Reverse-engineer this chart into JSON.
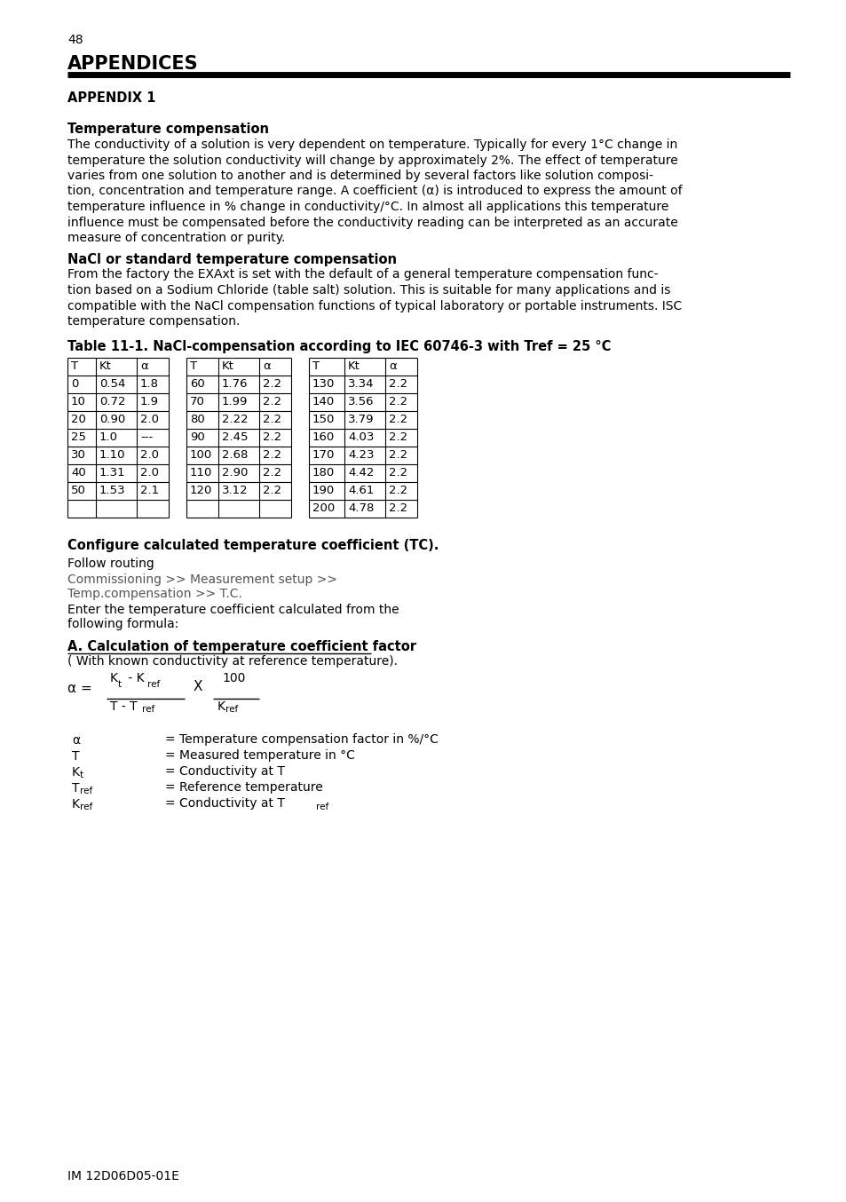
{
  "page_number": "48",
  "title": "APPENDICES",
  "appendix_label": "APPENDIX 1",
  "section1_heading": "Temperature compensation",
  "section1_body_lines": [
    "The conductivity of a solution is very dependent on temperature. Typically for every 1°C change in",
    "temperature the solution conductivity will change by approximately 2%. The effect of temperature",
    "varies from one solution to another and is determined by several factors like solution composi-",
    "tion, concentration and temperature range. A coefficient (α) is introduced to express the amount of",
    "temperature influence in % change in conductivity/°C. In almost all applications this temperature",
    "influence must be compensated before the conductivity reading can be interpreted as an accurate",
    "measure of concentration or purity."
  ],
  "section2_heading": "NaCl or standard temperature compensation",
  "section2_body_lines": [
    "From the factory the EXAxt is set with the default of a general temperature compensation func-",
    "tion based on a Sodium Chloride (table salt) solution. This is suitable for many applications and is",
    "compatible with the NaCl compensation functions of typical laboratory or portable instruments. ISC",
    "temperature compensation."
  ],
  "table_title": "Table 11-1. NaCl-compensation according to IEC 60746-3 with Tref = 25 °C",
  "table_col1": [
    [
      "T",
      "Kt",
      "α"
    ],
    [
      "0",
      "0.54",
      "1.8"
    ],
    [
      "10",
      "0.72",
      "1.9"
    ],
    [
      "20",
      "0.90",
      "2.0"
    ],
    [
      "25",
      "1.0",
      "---"
    ],
    [
      "30",
      "1.10",
      "2.0"
    ],
    [
      "40",
      "1.31",
      "2.0"
    ],
    [
      "50",
      "1.53",
      "2.1"
    ],
    [
      "",
      "",
      ""
    ]
  ],
  "table_col2": [
    [
      "T",
      "Kt",
      "α"
    ],
    [
      "60",
      "1.76",
      "2.2"
    ],
    [
      "70",
      "1.99",
      "2.2"
    ],
    [
      "80",
      "2.22",
      "2.2"
    ],
    [
      "90",
      "2.45",
      "2.2"
    ],
    [
      "100",
      "2.68",
      "2.2"
    ],
    [
      "110",
      "2.90",
      "2.2"
    ],
    [
      "120",
      "3.12",
      "2.2"
    ],
    [
      "",
      "",
      ""
    ]
  ],
  "table_col3": [
    [
      "T",
      "Kt",
      "α"
    ],
    [
      "130",
      "3.34",
      "2.2"
    ],
    [
      "140",
      "3.56",
      "2.2"
    ],
    [
      "150",
      "3.79",
      "2.2"
    ],
    [
      "160",
      "4.03",
      "2.2"
    ],
    [
      "170",
      "4.23",
      "2.2"
    ],
    [
      "180",
      "4.42",
      "2.2"
    ],
    [
      "190",
      "4.61",
      "2.2"
    ],
    [
      "200",
      "4.78",
      "2.2"
    ]
  ],
  "section3_heading": "Configure calculated temperature coefficient (TC).",
  "follow_routing": "Follow routing",
  "routing_line1": "Commissioning >> Measurement setup >>",
  "routing_line2": "Temp.compensation >> T.C.",
  "routing_body_lines": [
    "Enter the temperature coefficient calculated from the",
    "following formula:"
  ],
  "section_A_heading": "A. Calculation of temperature coefficient factor",
  "section_A_subheading": "( With known conductivity at reference temperature).",
  "footer": "IM 12D06D05-01E",
  "bg_color": "#ffffff",
  "text_color": "#000000",
  "lm": 76,
  "rm": 890
}
